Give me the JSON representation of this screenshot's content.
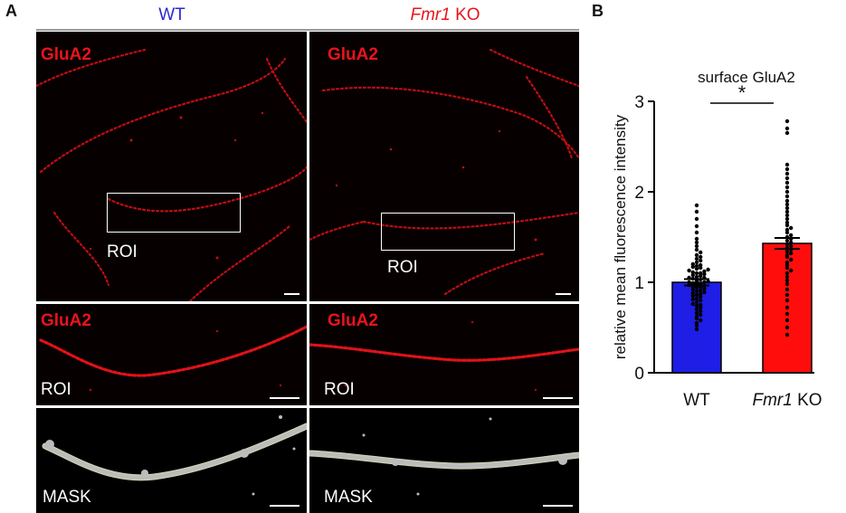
{
  "panel_a": {
    "letter": "A",
    "columns": {
      "wt": {
        "label": "WT",
        "color": "#2a2ad0"
      },
      "ko": {
        "gene": "Fmr1",
        "suffix": " KO",
        "color": "#e8141b"
      }
    },
    "channel_label": "GluA2",
    "roi_label": "ROI",
    "mask_label": "MASK"
  },
  "panel_b": {
    "letter": "B"
  },
  "chart_data": {
    "type": "bar",
    "title": "surface GluA2",
    "ylabel": "relative mean fluorescence intensity",
    "xlabel": "",
    "categories": [
      "WT",
      "Fmr1 KO"
    ],
    "category_labels": [
      {
        "text": "WT",
        "italic_part": ""
      },
      {
        "text": " KO",
        "italic_part": "Fmr1"
      }
    ],
    "values": [
      1.0,
      1.43
    ],
    "errors": [
      0.035,
      0.06
    ],
    "colors": [
      "#1e1ee6",
      "#ff0d0d"
    ],
    "ylim": [
      0,
      3
    ],
    "yticks": [
      0,
      1,
      2,
      3
    ],
    "significance": {
      "label": "*",
      "between": [
        0,
        1
      ]
    },
    "points": [
      [
        0.48,
        0.52,
        0.55,
        0.58,
        0.6,
        0.62,
        0.64,
        0.66,
        0.68,
        0.7,
        0.72,
        0.74,
        0.75,
        0.76,
        0.78,
        0.8,
        0.81,
        0.82,
        0.84,
        0.85,
        0.86,
        0.87,
        0.88,
        0.89,
        0.9,
        0.91,
        0.92,
        0.93,
        0.94,
        0.95,
        0.95,
        0.96,
        0.97,
        0.98,
        0.98,
        0.99,
        1.0,
        1.0,
        1.01,
        1.02,
        1.03,
        1.04,
        1.05,
        1.05,
        1.06,
        1.07,
        1.08,
        1.09,
        1.1,
        1.1,
        1.11,
        1.12,
        1.13,
        1.14,
        1.15,
        1.16,
        1.17,
        1.18,
        1.19,
        1.2,
        1.22,
        1.24,
        1.26,
        1.28,
        1.3,
        1.33,
        1.36,
        1.4,
        1.44,
        1.48,
        1.55,
        1.62,
        1.7,
        1.78,
        1.85
      ],
      [
        0.42,
        0.5,
        0.58,
        0.65,
        0.72,
        0.8,
        0.86,
        0.92,
        0.98,
        1.02,
        1.06,
        1.1,
        1.13,
        1.16,
        1.19,
        1.22,
        1.25,
        1.28,
        1.3,
        1.32,
        1.34,
        1.36,
        1.38,
        1.4,
        1.42,
        1.44,
        1.46,
        1.48,
        1.5,
        1.52,
        1.55,
        1.58,
        1.6,
        1.63,
        1.66,
        1.7,
        1.74,
        1.78,
        1.82,
        1.86,
        1.9,
        1.95,
        2.0,
        2.05,
        2.1,
        2.15,
        2.2,
        2.25,
        2.3,
        2.65,
        2.7,
        2.78
      ]
    ]
  }
}
